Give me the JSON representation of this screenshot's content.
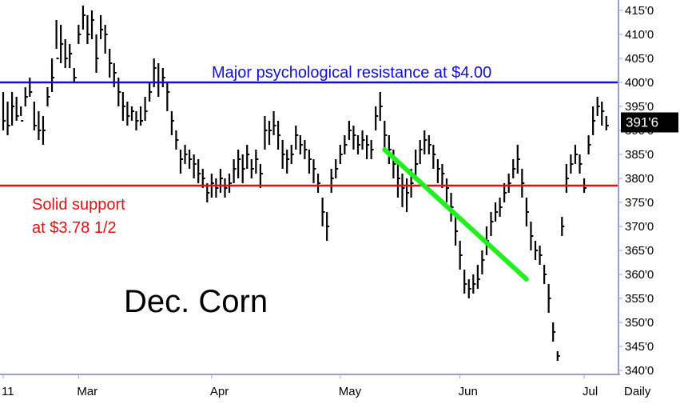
{
  "chart_data": {
    "type": "bar",
    "title": "Dec. Corn",
    "period_label": "Daily",
    "last_price_label": "391'6",
    "last_price": 391.75,
    "ylim": [
      340,
      417
    ],
    "y_ticks": [
      {
        "value": 415,
        "label": "415'0"
      },
      {
        "value": 410,
        "label": "410'0"
      },
      {
        "value": 405,
        "label": "405'0"
      },
      {
        "value": 400,
        "label": "400'0"
      },
      {
        "value": 395,
        "label": "395'0"
      },
      {
        "value": 390,
        "label": "390'0"
      },
      {
        "value": 385,
        "label": "385'0"
      },
      {
        "value": 380,
        "label": "380'0"
      },
      {
        "value": 375,
        "label": "375'0"
      },
      {
        "value": 370,
        "label": "370'0"
      },
      {
        "value": 365,
        "label": "365'0"
      },
      {
        "value": 360,
        "label": "360'0"
      },
      {
        "value": 355,
        "label": "355'0"
      },
      {
        "value": 350,
        "label": "350'0"
      },
      {
        "value": 345,
        "label": "345'0"
      },
      {
        "value": 340,
        "label": "340'0"
      }
    ],
    "x_ticks": [
      {
        "index": 0,
        "label": "11"
      },
      {
        "index": 17,
        "label": "Mar"
      },
      {
        "index": 47,
        "label": "Apr"
      },
      {
        "index": 76,
        "label": "May"
      },
      {
        "index": 103,
        "label": "Jun"
      },
      {
        "index": 131,
        "label": "Jul"
      }
    ],
    "resistance": {
      "value": 400,
      "label": "Major psychological resistance at $4.00",
      "color": "#1010cc"
    },
    "support": {
      "value": 378.5,
      "label_line1": "Solid support",
      "label_line2": "at $3.78 1/2",
      "color": "#dd1111"
    },
    "trendline": {
      "from": [
        86,
        386
      ],
      "to": [
        118,
        359
      ],
      "color": "#22ee22"
    },
    "bars": [
      [
        398,
        392,
        390
      ],
      [
        396,
        391,
        389
      ],
      [
        398,
        395,
        391
      ],
      [
        397,
        393,
        392
      ],
      [
        395,
        392,
        393
      ],
      [
        399,
        397,
        395
      ],
      [
        401,
        398,
        397
      ],
      [
        396,
        391,
        390
      ],
      [
        394,
        390,
        388
      ],
      [
        393,
        390,
        387
      ],
      [
        399,
        397,
        395
      ],
      [
        405,
        401,
        398
      ],
      [
        413,
        405,
        407
      ],
      [
        412,
        408,
        404
      ],
      [
        409,
        405,
        403
      ],
      [
        408,
        406,
        403
      ],
      [
        403,
        401,
        400
      ],
      [
        412,
        410,
        408
      ],
      [
        416,
        414,
        411
      ],
      [
        414,
        410,
        408
      ],
      [
        415,
        413,
        409
      ],
      [
        410,
        405,
        402
      ],
      [
        414,
        411,
        409
      ],
      [
        412,
        410,
        406
      ],
      [
        407,
        404,
        401
      ],
      [
        404,
        402,
        399
      ],
      [
        401,
        398,
        395
      ],
      [
        398,
        395,
        392
      ],
      [
        396,
        393,
        391
      ],
      [
        395,
        394,
        392
      ],
      [
        394,
        392,
        390
      ],
      [
        395,
        392,
        391
      ],
      [
        397,
        394,
        392
      ],
      [
        400,
        398,
        396
      ],
      [
        405,
        403,
        399
      ],
      [
        404,
        400,
        397
      ],
      [
        403,
        401,
        399
      ],
      [
        400,
        398,
        394
      ],
      [
        394,
        392,
        389
      ],
      [
        390,
        388,
        386
      ],
      [
        386,
        384,
        381
      ],
      [
        387,
        385,
        383
      ],
      [
        386,
        384,
        382
      ],
      [
        385,
        383,
        380
      ],
      [
        384,
        381,
        379
      ],
      [
        382,
        380,
        378
      ],
      [
        379,
        377,
        375
      ],
      [
        381,
        379,
        376
      ],
      [
        380,
        378,
        376
      ],
      [
        382,
        380,
        377
      ],
      [
        380,
        378,
        376
      ],
      [
        381,
        379,
        377
      ],
      [
        384,
        382,
        379
      ],
      [
        386,
        384,
        380
      ],
      [
        385,
        382,
        379
      ],
      [
        387,
        385,
        382
      ],
      [
        384,
        382,
        380
      ],
      [
        386,
        384,
        381
      ],
      [
        383,
        381,
        378
      ],
      [
        393,
        390,
        386
      ],
      [
        392,
        390,
        387
      ],
      [
        394,
        391,
        389
      ],
      [
        392,
        389,
        386
      ],
      [
        388,
        385,
        382
      ],
      [
        386,
        384,
        381
      ],
      [
        387,
        385,
        383
      ],
      [
        391,
        389,
        386
      ],
      [
        389,
        387,
        385
      ],
      [
        388,
        386,
        384
      ],
      [
        386,
        384,
        381
      ],
      [
        384,
        382,
        379
      ],
      [
        381,
        379,
        377
      ],
      [
        376,
        373,
        370
      ],
      [
        373,
        370,
        367
      ],
      [
        382,
        380,
        377
      ],
      [
        384,
        382,
        380
      ],
      [
        387,
        385,
        383
      ],
      [
        389,
        387,
        385
      ],
      [
        392,
        390,
        388
      ],
      [
        391,
        389,
        386
      ],
      [
        389,
        387,
        385
      ],
      [
        390,
        388,
        386
      ],
      [
        389,
        387,
        384
      ],
      [
        388,
        386,
        384
      ],
      [
        395,
        393,
        390
      ],
      [
        398,
        395,
        392
      ],
      [
        392,
        389,
        386
      ],
      [
        389,
        386,
        383
      ],
      [
        386,
        383,
        380
      ],
      [
        383,
        380,
        376
      ],
      [
        381,
        378,
        374
      ],
      [
        380,
        377,
        373
      ],
      [
        382,
        379,
        376
      ],
      [
        386,
        383,
        380
      ],
      [
        388,
        386,
        383
      ],
      [
        390,
        388,
        385
      ],
      [
        389,
        387,
        385
      ],
      [
        387,
        385,
        382
      ],
      [
        384,
        382,
        379
      ],
      [
        383,
        381,
        378
      ],
      [
        380,
        378,
        375
      ],
      [
        377,
        374,
        371
      ],
      [
        372,
        369,
        366
      ],
      [
        367,
        364,
        361
      ],
      [
        361,
        358,
        356
      ],
      [
        359,
        357,
        355
      ],
      [
        360,
        358,
        356
      ],
      [
        362,
        359,
        357
      ],
      [
        365,
        363,
        360
      ],
      [
        370,
        367,
        364
      ],
      [
        373,
        371,
        368
      ],
      [
        375,
        373,
        371
      ],
      [
        376,
        374,
        372
      ],
      [
        379,
        377,
        375
      ],
      [
        381,
        379,
        377
      ],
      [
        384,
        382,
        380
      ],
      [
        387,
        384,
        381
      ],
      [
        382,
        379,
        376
      ],
      [
        376,
        373,
        370
      ],
      [
        371,
        368,
        365
      ],
      [
        367,
        365,
        363
      ],
      [
        366,
        364,
        362
      ],
      [
        362,
        360,
        358
      ],
      [
        358,
        355,
        352
      ],
      [
        350,
        348,
        346
      ],
      [
        344,
        343,
        342
      ],
      [
        372,
        370,
        368
      ],
      [
        383,
        380,
        377
      ],
      [
        385,
        383,
        381
      ],
      [
        387,
        385,
        383
      ],
      [
        385,
        383,
        381
      ],
      [
        380,
        378,
        377
      ],
      [
        389,
        387,
        385
      ],
      [
        395,
        392,
        389
      ],
      [
        397,
        395,
        393
      ],
      [
        396,
        394,
        391
      ],
      [
        393,
        391,
        390
      ]
    ]
  }
}
